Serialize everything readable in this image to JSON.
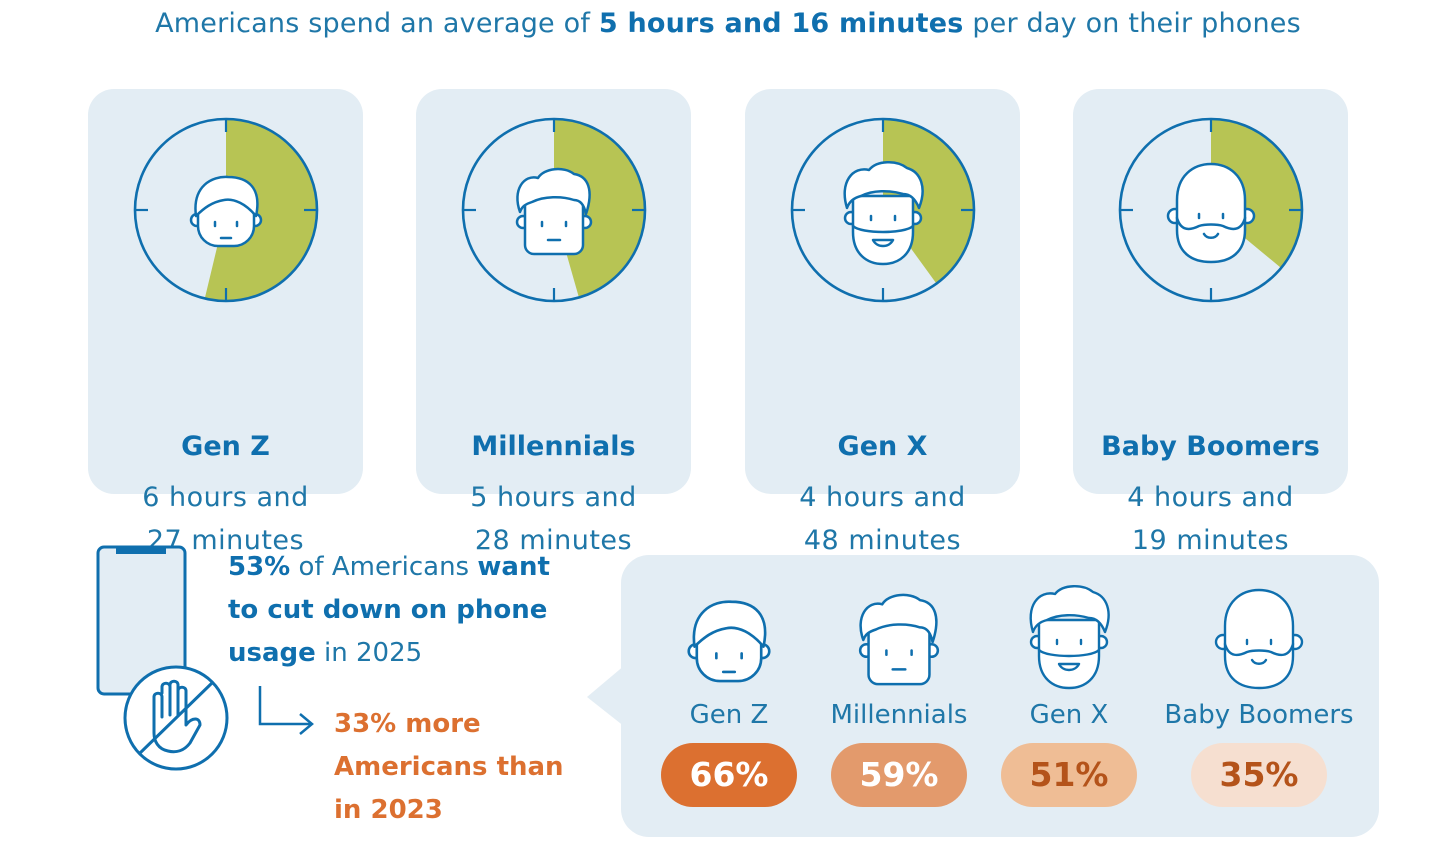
{
  "headline": {
    "prefix": "Americans spend an average of",
    "highlight": "5 hours and 16 minutes",
    "suffix": "per day on their phones"
  },
  "colors": {
    "blue": "#0f6fae",
    "green": "#b7c454",
    "card_bg": "#e3edf4",
    "orange": "#dc7030"
  },
  "cards": [
    {
      "gen": "Gen Z",
      "time_line1": "6 hours and",
      "time_line2": "27 minutes",
      "hours": 6.45,
      "icon": "young-face-icon"
    },
    {
      "gen": "Millennials",
      "time_line1": "5 hours and",
      "time_line2": "28 minutes",
      "hours": 5.47,
      "icon": "millennial-face-icon"
    },
    {
      "gen": "Gen X",
      "time_line1": "4 hours and",
      "time_line2": "48 minutes",
      "hours": 4.8,
      "icon": "bearded-face-icon"
    },
    {
      "gen": "Baby Boomers",
      "time_line1": "4 hours and",
      "time_line2": "19 minutes",
      "hours": 4.32,
      "icon": "bald-beard-face-icon"
    }
  ],
  "cutdown": {
    "pct": "53%",
    "text_a": "of Americans",
    "text_b": "want",
    "text_c": "to cut down on phone",
    "text_d": "usage",
    "text_e": "in 2025",
    "more_line1": "33% more",
    "more_line2": "Americans than",
    "more_line3": "in 2023"
  },
  "chart_data": [
    {
      "type": "pie",
      "title": "Americans spend an average of 5 hours and 16 minutes per day on their phones",
      "categories": [
        "Gen Z",
        "Millennials",
        "Gen X",
        "Baby Boomers"
      ],
      "values": [
        6.45,
        5.47,
        4.8,
        4.32
      ],
      "unit": "hours per day",
      "scale_max": 12
    },
    {
      "type": "table",
      "title": "Want to cut down on phone usage in 2025",
      "categories": [
        "Gen Z",
        "Millennials",
        "Gen X",
        "Baby Boomers"
      ],
      "values": [
        66,
        59,
        51,
        35
      ],
      "labels": [
        "66%",
        "59%",
        "51%",
        "35%"
      ],
      "pill_colors": [
        "#dc7030",
        "#e39a6c",
        "#efbd95",
        "#f6dfd0"
      ],
      "text_colors": [
        "#ffffff",
        "#ffffff",
        "#b4531a",
        "#b4531a"
      ]
    }
  ]
}
